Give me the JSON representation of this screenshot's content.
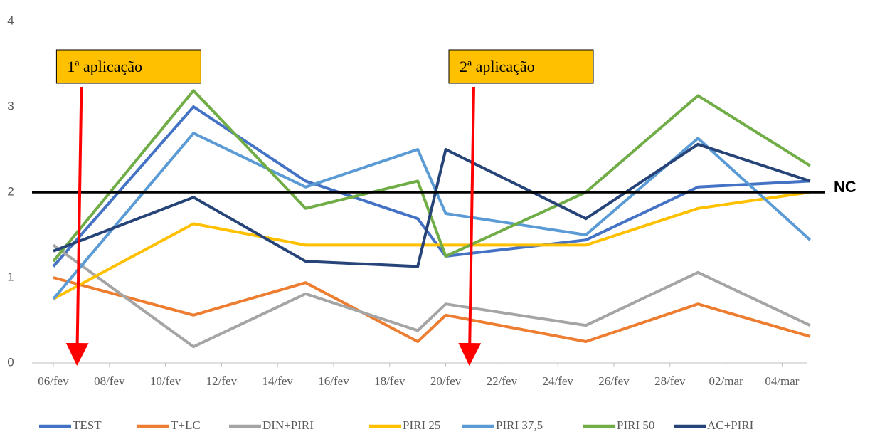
{
  "chart_data": {
    "type": "line",
    "x": [
      "06/fev",
      "11/fev",
      "15/fev",
      "19/fev",
      "20/fev",
      "25/fev",
      "01/mar",
      "05/mar"
    ],
    "xticks": [
      "06/fev",
      "08/fev",
      "10/fev",
      "12/fev",
      "14/fev",
      "16/fev",
      "18/fev",
      "20/fev",
      "22/fev",
      "24/fev",
      "26/fev",
      "28/fev",
      "02/mar",
      "04/mar"
    ],
    "ylim": [
      0,
      4
    ],
    "yticks": [
      0,
      1,
      2,
      3,
      4
    ],
    "grid": false,
    "legend": "bottom",
    "series": [
      {
        "name": "TEST",
        "color": "#4472c4",
        "values": [
          1.13,
          3.0,
          2.13,
          1.69,
          1.25,
          1.44,
          2.06,
          2.13
        ]
      },
      {
        "name": "T+LC",
        "color": "#ed7d31",
        "values": [
          1.0,
          0.56,
          0.94,
          0.25,
          0.56,
          0.25,
          0.69,
          0.31
        ]
      },
      {
        "name": "DIN+PIRI",
        "color": "#a5a5a5",
        "values": [
          1.38,
          0.19,
          0.81,
          0.38,
          0.69,
          0.44,
          1.06,
          0.44
        ]
      },
      {
        "name": "PIRI 25",
        "color": "#ffc000",
        "values": [
          0.75,
          1.63,
          1.38,
          1.38,
          1.38,
          1.38,
          1.81,
          2.0
        ]
      },
      {
        "name": "PIRI 37,5",
        "color": "#5b9bd5",
        "values": [
          0.75,
          2.69,
          2.06,
          2.5,
          1.75,
          1.5,
          2.63,
          1.44
        ]
      },
      {
        "name": "PIRI 50",
        "color": "#70ad47",
        "values": [
          1.19,
          3.19,
          1.81,
          2.13,
          1.25,
          2.0,
          3.13,
          2.31
        ]
      },
      {
        "name": "AC+PIRI",
        "color": "#264478",
        "values": [
          1.31,
          1.94,
          1.19,
          1.13,
          2.5,
          1.69,
          2.56,
          2.13
        ]
      }
    ],
    "reference_line": {
      "value": 2,
      "label": "NC",
      "color": "#000000"
    },
    "annotations": [
      {
        "text": "1ª aplicação",
        "x": "07/fev"
      },
      {
        "text": "2ª aplicação",
        "x": "21/fev"
      }
    ]
  }
}
